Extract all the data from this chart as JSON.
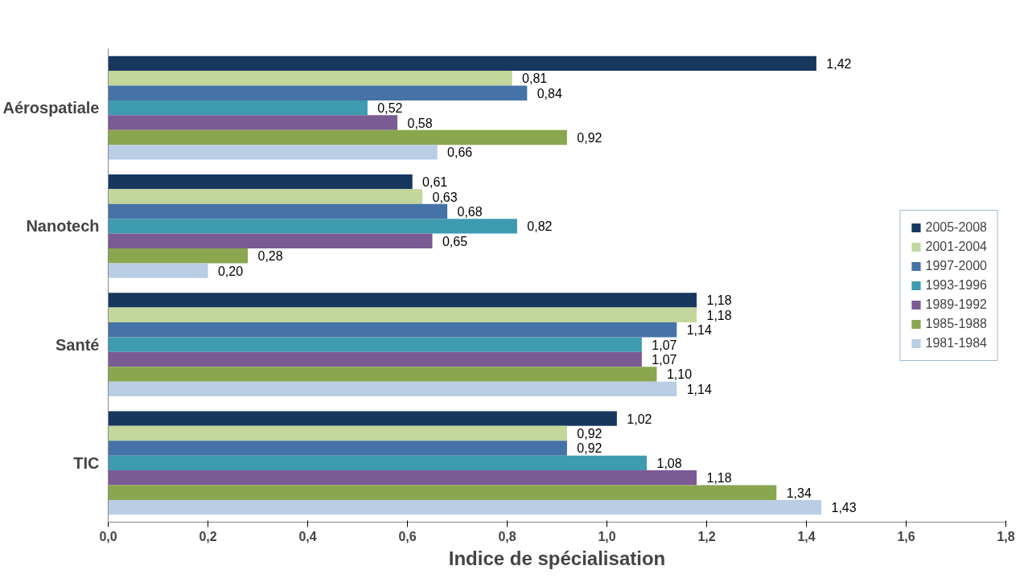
{
  "chart_data": {
    "type": "bar",
    "orientation": "horizontal",
    "xlabel": "Indice de spécialisation",
    "categories": [
      "Aérospatiale",
      "Nanotech",
      "Santé",
      "TIC"
    ],
    "series": [
      {
        "name": "2005-2008",
        "color": "#17375e",
        "values": [
          1.42,
          0.61,
          1.18,
          1.02
        ],
        "value_labels": [
          "1,42",
          "0,61",
          "1,18",
          "1,02"
        ]
      },
      {
        "name": "2001-2004",
        "color": "#c3d69b",
        "values": [
          0.81,
          0.63,
          1.18,
          0.92
        ],
        "value_labels": [
          "0,81",
          "0,63",
          "1,18",
          "0,92"
        ]
      },
      {
        "name": "1997-2000",
        "color": "#4572a7",
        "values": [
          0.84,
          0.68,
          1.14,
          0.92
        ],
        "value_labels": [
          "0,84",
          "0,68",
          "1,14",
          "0,92"
        ]
      },
      {
        "name": "1993-1996",
        "color": "#3e9bb0",
        "values": [
          0.52,
          0.82,
          1.07,
          1.08
        ],
        "value_labels": [
          "0,52",
          "0,82",
          "1,07",
          "1,08"
        ]
      },
      {
        "name": "1989-1992",
        "color": "#7a5b93",
        "values": [
          0.58,
          0.65,
          1.07,
          1.18
        ],
        "value_labels": [
          "0,58",
          "0,65",
          "1,07",
          "1,18"
        ]
      },
      {
        "name": "1985-1988",
        "color": "#8aa64f",
        "values": [
          0.92,
          0.28,
          1.1,
          1.34
        ],
        "value_labels": [
          "0,92",
          "0,28",
          "1,10",
          "1,34"
        ]
      },
      {
        "name": "1981-1984",
        "color": "#b9cde5",
        "values": [
          0.66,
          0.2,
          1.14,
          1.43
        ],
        "value_labels": [
          "0,66",
          "0,20",
          "1,14",
          "1,43"
        ]
      }
    ],
    "xlim": [
      0,
      1.8
    ],
    "xticks": [
      {
        "value": 0,
        "label": "0,0"
      },
      {
        "value": 0.2,
        "label": "0,2"
      },
      {
        "value": 0.4,
        "label": "0,4"
      },
      {
        "value": 0.6,
        "label": "0,6"
      },
      {
        "value": 0.8,
        "label": "0,8"
      },
      {
        "value": 1.0,
        "label": "1,0"
      },
      {
        "value": 1.2,
        "label": "1,2"
      },
      {
        "value": 1.4,
        "label": "1,4"
      },
      {
        "value": 1.6,
        "label": "1,6"
      },
      {
        "value": 1.8,
        "label": "1,8"
      }
    ],
    "grid": false,
    "legend": "right"
  }
}
